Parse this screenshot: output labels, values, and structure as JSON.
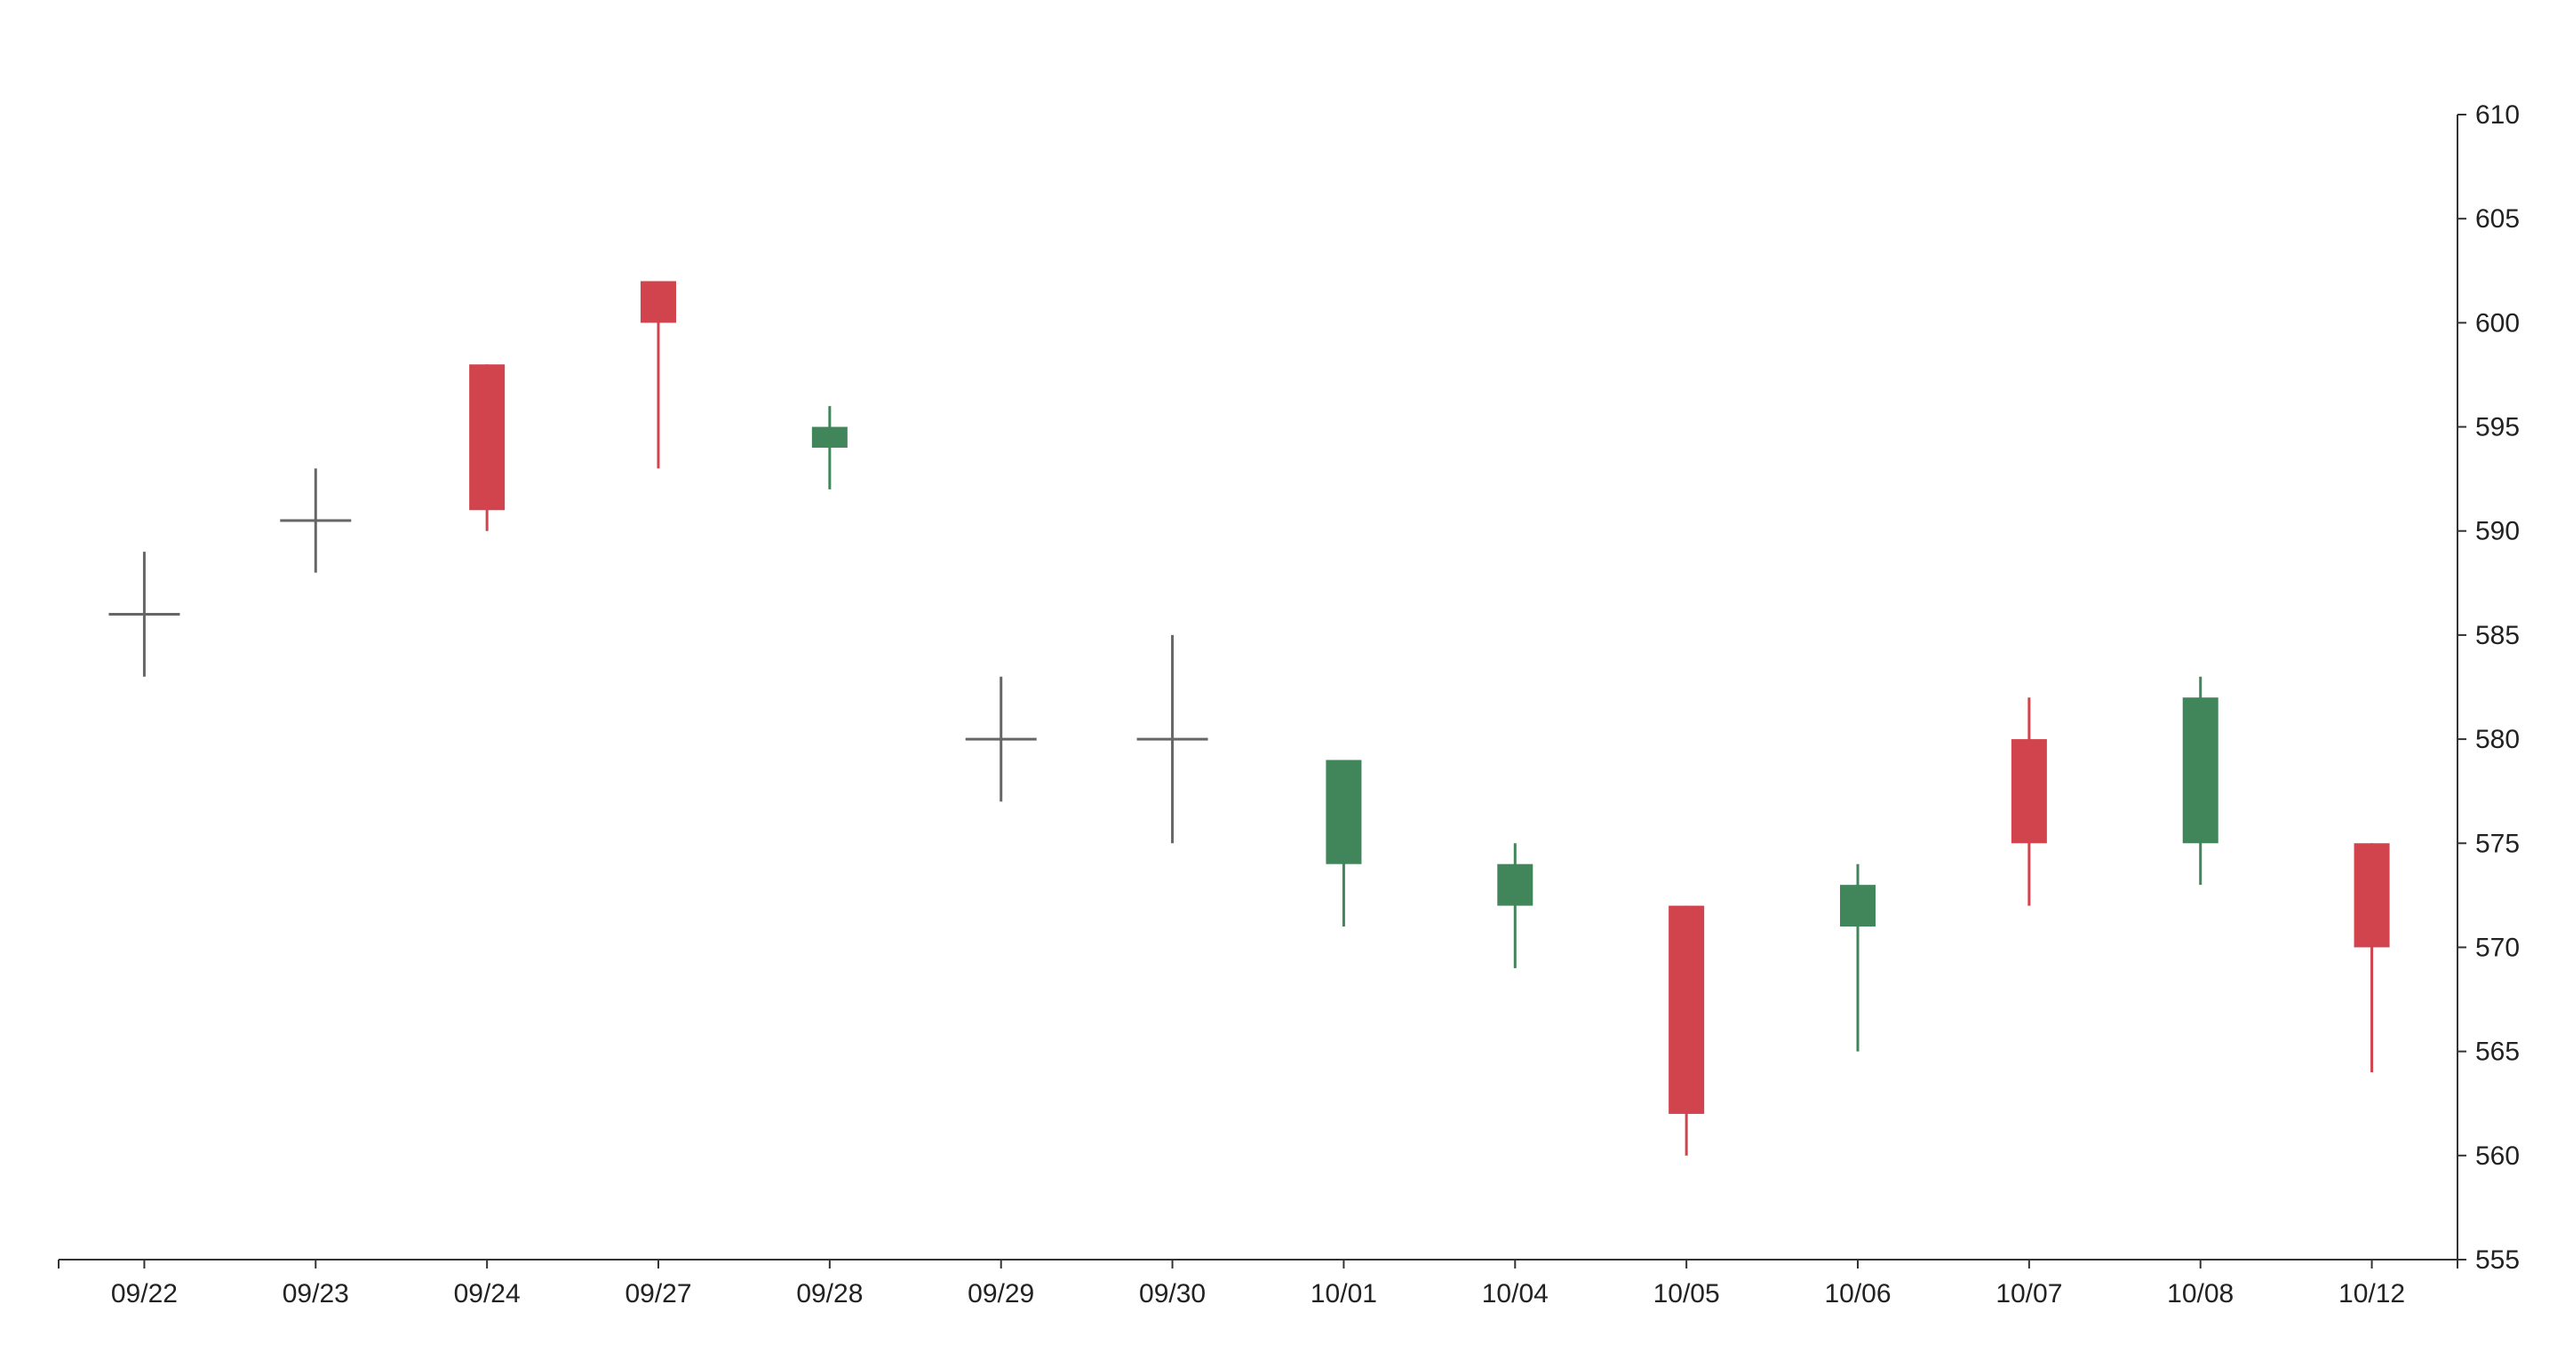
{
  "colors": {
    "up": "#d1434d",
    "down": "#41865a",
    "doji": "#666666",
    "axis": "#333333",
    "text": "#222222"
  },
  "chart_data": {
    "type": "candlestick",
    "title": "",
    "xlabel": "",
    "ylabel": "",
    "ylim": [
      555,
      610
    ],
    "y_axis_position": "right",
    "y_ticks": [
      555,
      560,
      565,
      570,
      575,
      580,
      585,
      590,
      595,
      600,
      605,
      610
    ],
    "grid": false,
    "legend": "none",
    "categories": [
      "09/22",
      "09/23",
      "09/24",
      "09/27",
      "09/28",
      "09/29",
      "09/30",
      "10/01",
      "10/04",
      "10/05",
      "10/06",
      "10/07",
      "10/08",
      "10/12"
    ],
    "candles": [
      {
        "date": "09/22",
        "open": 586,
        "close": 586,
        "high": 589,
        "low": 583
      },
      {
        "date": "09/23",
        "open": 590.5,
        "close": 590.5,
        "high": 593,
        "low": 588
      },
      {
        "date": "09/24",
        "open": 591,
        "close": 598,
        "high": 598,
        "low": 590
      },
      {
        "date": "09/27",
        "open": 600,
        "close": 602,
        "high": 602,
        "low": 593
      },
      {
        "date": "09/28",
        "open": 595,
        "close": 594,
        "high": 596,
        "low": 592
      },
      {
        "date": "09/29",
        "open": 580,
        "close": 580,
        "high": 583,
        "low": 577
      },
      {
        "date": "09/30",
        "open": 580,
        "close": 580,
        "high": 585,
        "low": 575
      },
      {
        "date": "10/01",
        "open": 579,
        "close": 574,
        "high": 579,
        "low": 571
      },
      {
        "date": "10/04",
        "open": 574,
        "close": 572,
        "high": 575,
        "low": 569
      },
      {
        "date": "10/05",
        "open": 562,
        "close": 572,
        "high": 572,
        "low": 560
      },
      {
        "date": "10/06",
        "open": 573,
        "close": 571,
        "high": 574,
        "low": 565
      },
      {
        "date": "10/07",
        "open": 575,
        "close": 580,
        "high": 582,
        "low": 572
      },
      {
        "date": "10/08",
        "open": 582,
        "close": 575,
        "high": 583,
        "low": 573
      },
      {
        "date": "10/12",
        "open": 570,
        "close": 575,
        "high": 575,
        "low": 564
      }
    ]
  }
}
